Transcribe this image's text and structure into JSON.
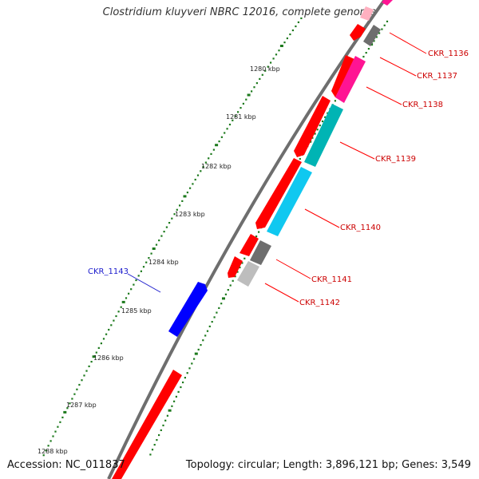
{
  "title": "Clostridium kluyveri NBRC 12016, complete genome",
  "footer": {
    "accession": "Accession: NC_011837",
    "summary": "Topology: circular; Length: 3,896,121 bp; Genes: 3,549"
  },
  "colors": {
    "background": "#ffffff",
    "backbone": "#6e6e6e",
    "tick_dots": "#1d7a1d",
    "forward_label": "#1a1acc",
    "reverse_label": "#cc0000",
    "cds_red": "#ff0000",
    "cds_magenta": "#ff1493",
    "cds_cyan_dark": "#00b4b4",
    "cds_cyan_light": "#10c8f0",
    "cds_gray": "#6e6e6e",
    "cds_gray_light": "#bdbdbd",
    "cds_blue": "#0000ff"
  },
  "scale_ticks": [
    "1280 kbp",
    "1281 kbp",
    "1282 kbp",
    "1283 kbp",
    "1284 kbp",
    "1285 kbp",
    "1286 kbp",
    "1287 kbp",
    "1288 kbp"
  ],
  "gene_labels": [
    {
      "name": "CKR_1136",
      "strand": "reverse"
    },
    {
      "name": "CKR_1137",
      "strand": "reverse"
    },
    {
      "name": "CKR_1138",
      "strand": "reverse"
    },
    {
      "name": "CKR_1139",
      "strand": "reverse"
    },
    {
      "name": "CKR_1140",
      "strand": "reverse"
    },
    {
      "name": "CKR_1141",
      "strand": "reverse"
    },
    {
      "name": "CKR_1142",
      "strand": "reverse"
    },
    {
      "name": "CKR_1143",
      "strand": "forward"
    }
  ]
}
